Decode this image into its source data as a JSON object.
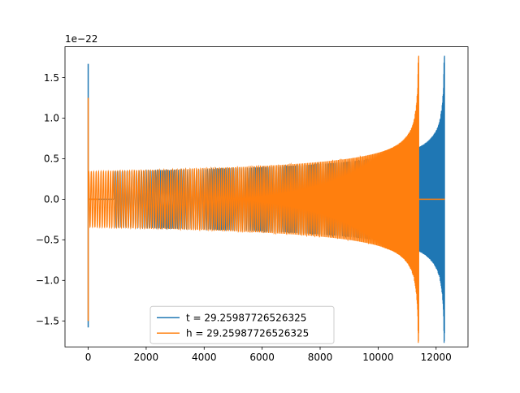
{
  "chart_data": {
    "type": "line",
    "title": "",
    "xlabel": "",
    "ylabel": "",
    "y_offset_label": "1e−22",
    "xlim": [
      -800,
      13100
    ],
    "ylim": [
      -1.82,
      1.88
    ],
    "xticks": [
      0,
      2000,
      4000,
      6000,
      8000,
      10000,
      12000
    ],
    "xtick_labels": [
      "0",
      "2000",
      "4000",
      "6000",
      "8000",
      "10000",
      "12000"
    ],
    "yticks": [
      -1.5,
      -1.0,
      -0.5,
      0.0,
      0.5,
      1.0,
      1.5
    ],
    "ytick_labels": [
      "−1.5",
      "−1.0",
      "−0.5",
      "0.0",
      "0.5",
      "1.0",
      "1.5"
    ],
    "grid": false,
    "legend_position": "lower-center",
    "series": [
      {
        "name": "t = 29.25987726526325",
        "color": "#1f77b4",
        "spike_x": 0,
        "spike_range": [
          -1.58,
          1.67
        ],
        "zero_line": [
          [
            0,
            900
          ]
        ],
        "start_x": 900,
        "merger_x": 12290,
        "amplitude_start": 0.34,
        "amplitude_peak": 1.77,
        "amplitude_min_peak": -1.65,
        "zero_after_merger": false
      },
      {
        "name": "h = 29.25987726526325",
        "color": "#ff7f0e",
        "spike_x": 0,
        "spike_range": [
          -1.5,
          1.25
        ],
        "zero_line": [
          [
            0,
            330
          ],
          [
            11400,
            12300
          ]
        ],
        "start_x": 0,
        "merger_x": 11400,
        "amplitude_start": 0.34,
        "amplitude_peak": 1.77,
        "amplitude_min_peak": -1.65,
        "zero_after_merger": true
      }
    ]
  }
}
